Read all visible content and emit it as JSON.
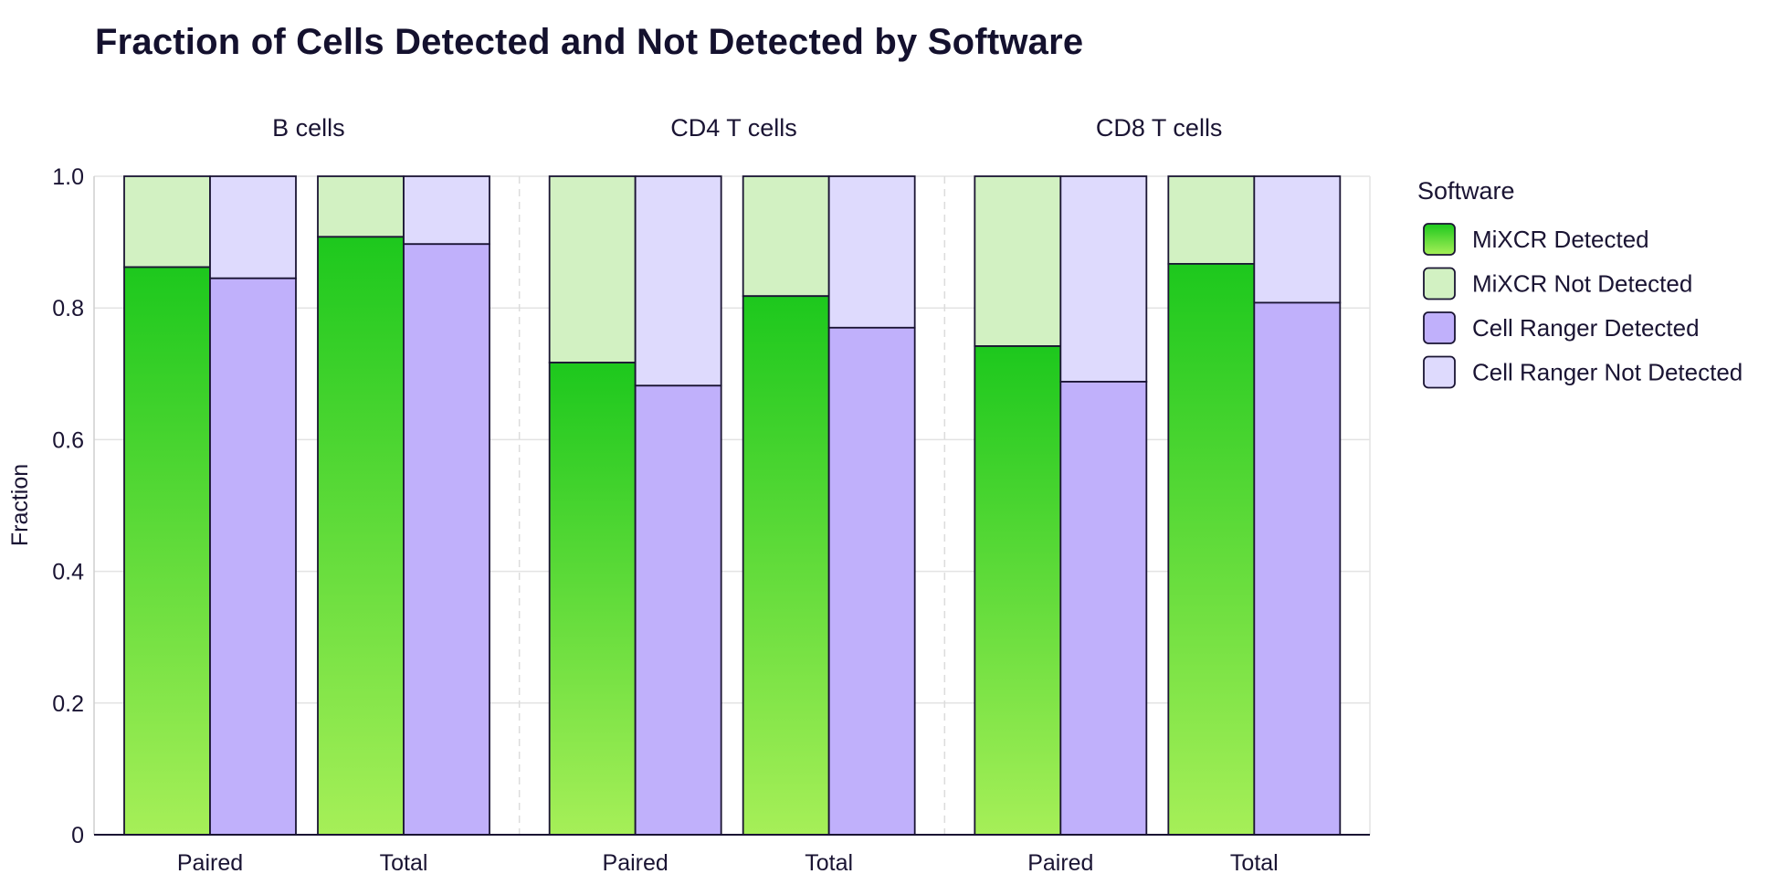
{
  "chart_data": {
    "type": "bar",
    "stacked": true,
    "faceted": true,
    "title": "Fraction of Cells Detected and Not Detected by Software",
    "xlabel": "",
    "ylabel": "Fraction",
    "ylim": [
      0,
      1.0
    ],
    "yticks": [
      "0",
      "0.2",
      "0.4",
      "0.6",
      "0.8",
      "1.0"
    ],
    "ytick_values": [
      0,
      0.2,
      0.4,
      0.6,
      0.8,
      1.0
    ],
    "grid": true,
    "legend_position": "right",
    "legend_title": "Software",
    "legend": [
      {
        "name": "MiXCR Detected",
        "color": "#3fd02a"
      },
      {
        "name": "MiXCR Not Detected",
        "color": "#d2f1c2"
      },
      {
        "name": "Cell Ranger Detected",
        "color": "#c0b0fb"
      },
      {
        "name": "Cell Ranger Not Detected",
        "color": "#dedafd"
      }
    ],
    "gradient": {
      "mixcr_top": "#1dc81d",
      "mixcr_bottom": "#a6ef58"
    },
    "facets": [
      {
        "name": "B cells",
        "groups": [
          {
            "category": "Paired",
            "mixcr_detected": 0.862,
            "mixcr_not_detected": 0.138,
            "cellranger_detected": 0.845,
            "cellranger_not_detected": 0.155
          },
          {
            "category": "Total",
            "mixcr_detected": 0.908,
            "mixcr_not_detected": 0.092,
            "cellranger_detected": 0.897,
            "cellranger_not_detected": 0.103
          }
        ]
      },
      {
        "name": "CD4 T cells",
        "groups": [
          {
            "category": "Paired",
            "mixcr_detected": 0.717,
            "mixcr_not_detected": 0.283,
            "cellranger_detected": 0.682,
            "cellranger_not_detected": 0.318
          },
          {
            "category": "Total",
            "mixcr_detected": 0.818,
            "mixcr_not_detected": 0.182,
            "cellranger_detected": 0.77,
            "cellranger_not_detected": 0.23
          }
        ]
      },
      {
        "name": "CD8 T cells",
        "groups": [
          {
            "category": "Paired",
            "mixcr_detected": 0.742,
            "mixcr_not_detected": 0.258,
            "cellranger_detected": 0.688,
            "cellranger_not_detected": 0.312
          },
          {
            "category": "Total",
            "mixcr_detected": 0.867,
            "mixcr_not_detected": 0.133,
            "cellranger_detected": 0.808,
            "cellranger_not_detected": 0.192
          }
        ]
      }
    ]
  }
}
